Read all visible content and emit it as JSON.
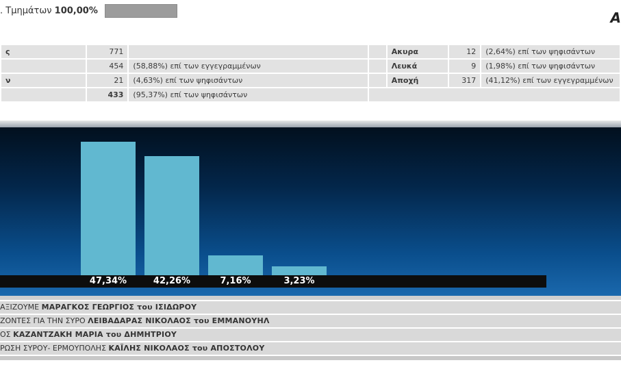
{
  "header": {
    "sections_prefix": ". Τμημάτων",
    "sections_value": "100,00%",
    "corner_letter": "Α"
  },
  "stats": {
    "rows": [
      {
        "label": "ς",
        "value": "771",
        "desc": "",
        "label2": "Ακυρα",
        "value2": "12",
        "desc2": "(2,64%) επί των ψηφισάντων"
      },
      {
        "label": "",
        "value": "454",
        "desc": "(58,88%) επί των εγγεγραμμένων",
        "label2": "Λευκά",
        "value2": "9",
        "desc2": "(1,98%) επί των ψηφισάντων"
      },
      {
        "label": "ν",
        "value": "21",
        "desc": "(4,63%) επί των ψηφισάντων",
        "label2": "Αποχή",
        "value2": "317",
        "desc2": "(41,12%) επί των εγγεγραμμένων"
      },
      {
        "label": "",
        "value": "433",
        "desc": "(95,37%) επί των ψηφισάντων",
        "label2": "",
        "value2": "",
        "desc2": ""
      }
    ]
  },
  "chart_data": {
    "type": "bar",
    "categories": [
      "ΜΑΡΑΓΚΟΣ ΓΕΩΡΓΙΟΣ",
      "ΛΕΙΒΑΔΑΡΑΣ ΝΙΚΟΛΑΟΣ",
      "ΚΑΖΑΝΤΖΑΚΗ ΜΑΡΙΑ",
      "ΚΑΪΛΗΣ ΝΙΚΟΛΑΟΣ"
    ],
    "values": [
      47.34,
      42.26,
      7.16,
      3.23
    ],
    "value_labels": [
      "47,34%",
      "42,26%",
      "7,16%",
      "3,23%"
    ],
    "bar_color": "#61b8d0"
  },
  "candidates": [
    {
      "prefix": "ΑΞΙΖΟΥΜΕ ",
      "name": "ΜΑΡΑΓΚΟΣ ΓΕΩΡΓΙΟΣ του ΙΣΙΔΩΡΟΥ"
    },
    {
      "prefix": "ΖΟΝΤΕΣ ΓΙΑ ΤΗΝ ΣΥΡΟ ",
      "name": "ΛΕΙΒΑΔΑΡΑΣ ΝΙΚΟΛΑΟΣ του ΕΜΜΑΝΟΥΗΛ"
    },
    {
      "prefix": "ΟΣ ",
      "name": "ΚΑΖΑΝΤΖΑΚΗ ΜΑΡΙΑ του ΔΗΜΗΤΡΙΟΥ"
    },
    {
      "prefix": "ΡΩΣΗ ΣΥΡΟΥ- ΕΡΜΟΥΠΟΛΗΣ ",
      "name": "ΚΑΪΛΗΣ ΝΙΚΟΛΑΟΣ του ΑΠΟΣΤΟΛΟΥ"
    }
  ]
}
